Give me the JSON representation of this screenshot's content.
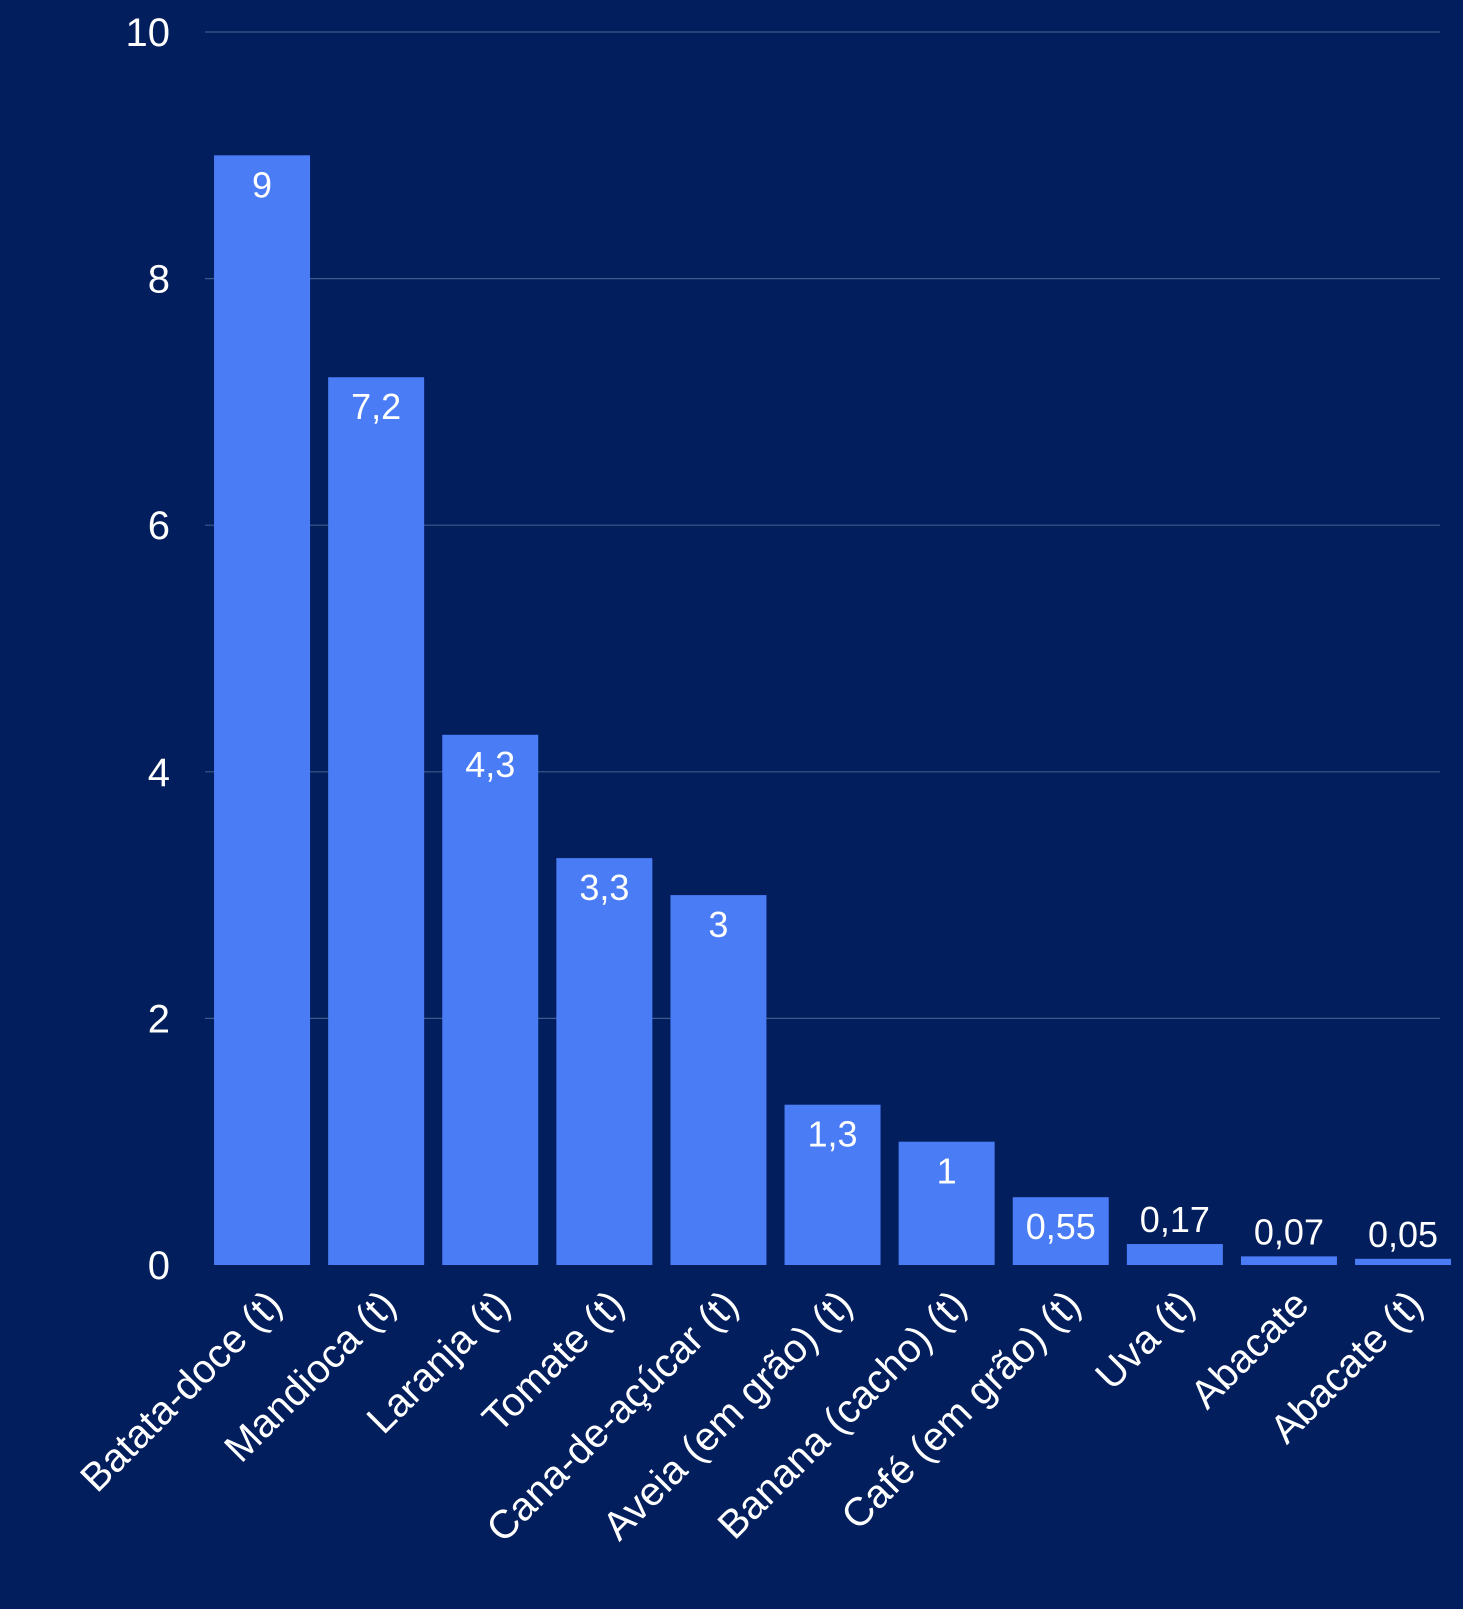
{
  "chart_data": {
    "type": "bar",
    "categories": [
      "Batata-doce (t)",
      "Mandioca (t)",
      "Laranja (t)",
      "Tomate (t)",
      "Cana-de-açúcar (t)",
      "Aveia (em grão) (t)",
      "Banana (cacho) (t)",
      "Café (em grão) (t)",
      "Uva (t)",
      "Abacate",
      "Abacate (t)"
    ],
    "values": [
      9,
      7.2,
      4.3,
      3.3,
      3,
      1.3,
      1,
      0.55,
      0.17,
      0.07,
      0.05
    ],
    "data_labels": [
      "9",
      "7,2",
      "4,3",
      "3,3",
      "3",
      "1,3",
      "1",
      "0,55",
      "0,17",
      "0,07",
      "0,05"
    ],
    "y_ticks": [
      0,
      2,
      4,
      6,
      8,
      10
    ],
    "y_tick_labels": [
      "0",
      "2",
      "4",
      "6",
      "8",
      "10"
    ],
    "ylim": [
      0,
      10
    ],
    "grid": true,
    "title": "",
    "xlabel": "",
    "ylabel": ""
  },
  "colors": {
    "background": "#021e5c",
    "bar": "#4a7cf6",
    "grid": "#3c5a8c",
    "text": "#ffffff"
  }
}
